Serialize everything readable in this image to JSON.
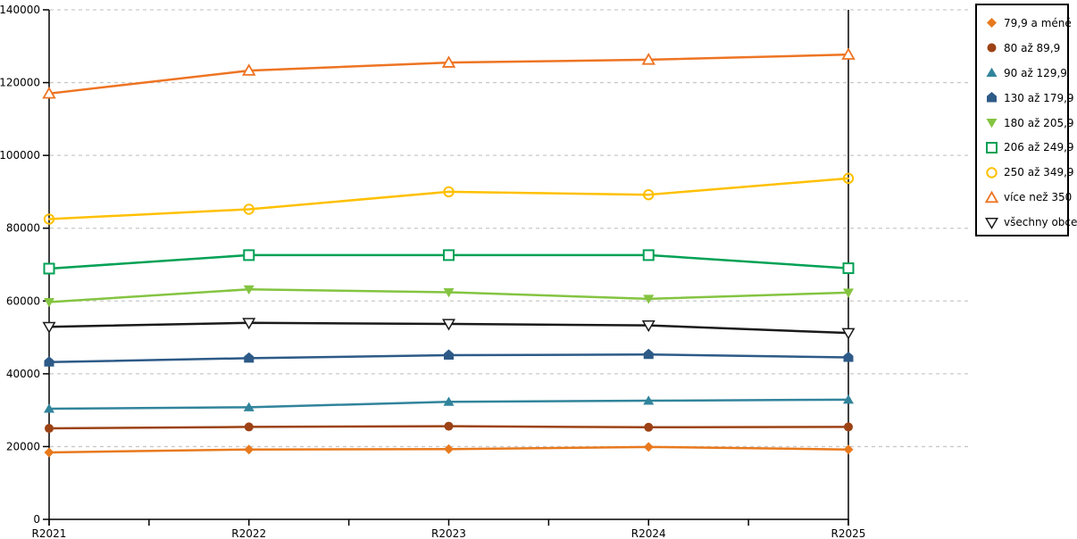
{
  "chart_data": {
    "type": "line",
    "title": "",
    "xlabel": "",
    "ylabel": "",
    "categories": [
      "R2021",
      "R2022",
      "R2023",
      "R2024",
      "R2025"
    ],
    "y_axis": {
      "min": 0,
      "max": 140000,
      "tick_step": 20000,
      "tick_labels": [
        "0",
        "20000",
        "40000",
        "60000",
        "80000",
        "100000",
        "120000",
        "140000"
      ]
    },
    "grid": "horizontal-dashed",
    "legend_position": "right-outside-boxed",
    "series": [
      {
        "name": "79,9 a méně",
        "color": "#E8791D",
        "marker": "diamond",
        "values": [
          18400,
          19200,
          19300,
          19900,
          19200
        ]
      },
      {
        "name": "80 až 89,9",
        "color": "#9C4215",
        "marker": "circle",
        "values": [
          25000,
          25400,
          25600,
          25300,
          25400
        ]
      },
      {
        "name": "90 až 129,9",
        "color": "#31849B",
        "marker": "triangle-up",
        "values": [
          30400,
          30800,
          32300,
          32600,
          32900
        ]
      },
      {
        "name": "130 až 179,9",
        "color": "#2D5A87",
        "marker": "pentagon",
        "values": [
          43200,
          44300,
          45100,
          45300,
          44500
        ]
      },
      {
        "name": "180 až 205,9",
        "color": "#84C441",
        "marker": "triangle-down",
        "values": [
          59700,
          63200,
          62400,
          60600,
          62300
        ]
      },
      {
        "name": "206 až 249,9",
        "color": "#00A155",
        "marker": "square-open",
        "values": [
          68900,
          72600,
          72600,
          72600,
          69000
        ]
      },
      {
        "name": "250 až 349,9",
        "color": "#FFC000",
        "marker": "circle-open",
        "values": [
          82500,
          85200,
          90000,
          89200,
          93700
        ]
      },
      {
        "name": "více než 350",
        "color": "#EE7423",
        "marker": "triangle-up-open",
        "values": [
          117000,
          123300,
          125500,
          126300,
          127700
        ]
      },
      {
        "name": "všechny obce",
        "color": "#1A1A1A",
        "marker": "triangle-down-open",
        "values": [
          52900,
          54000,
          53700,
          53300,
          51200
        ]
      }
    ],
    "colors": {
      "gridline": "#C9C9C9",
      "axis": "#000000",
      "background": "#FFFFFF"
    }
  }
}
